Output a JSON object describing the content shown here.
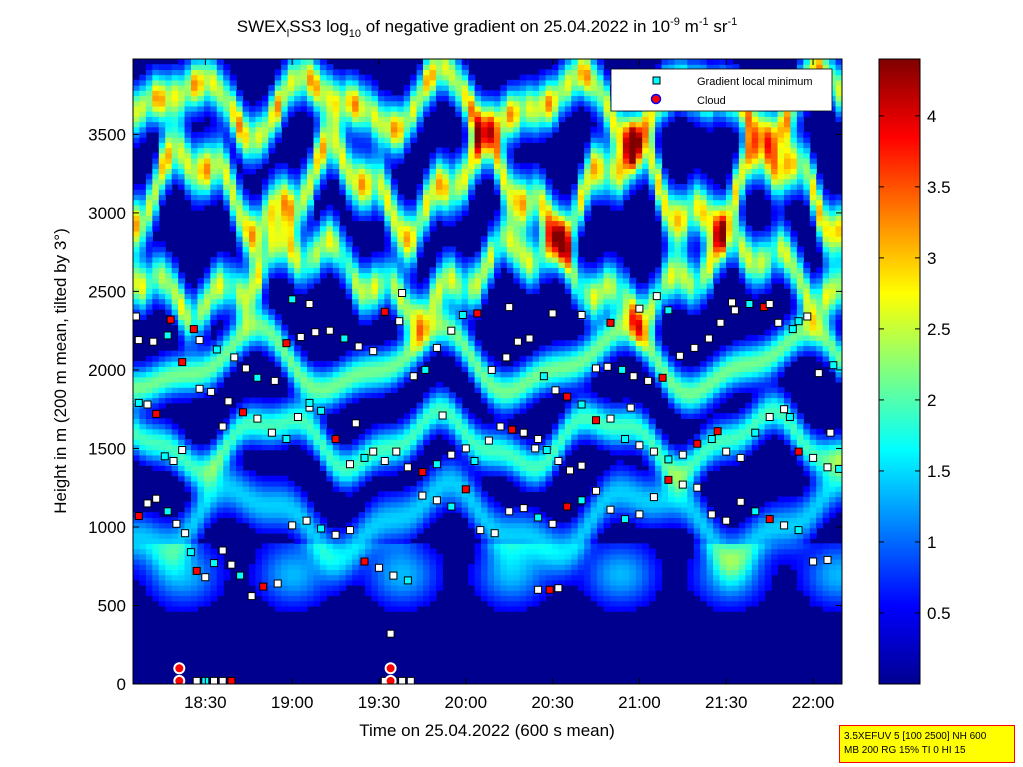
{
  "chart_data": {
    "type": "heatmap",
    "title": {
      "p1": "SWEX",
      "sub1": "l",
      "p2": "SS3 log",
      "sub2": "10",
      "p3": " of negative gradient on 25.04.2022 in 10",
      "sup1": "-9",
      "p4": " m",
      "sup2": "-1",
      "p5": " sr",
      "sup3": "-1"
    },
    "xlabel": "Time on 25.04.2022 (600 s mean)",
    "ylabel": "Height in m (200 m mean, tilted by 3°)",
    "x_ticks": [
      "18:30",
      "19:00",
      "19:30",
      "20:00",
      "20:30",
      "21:00",
      "21:30",
      "22:00"
    ],
    "x_range_minutes": [
      1085,
      1330
    ],
    "x_tick_minutes": [
      1110,
      1140,
      1170,
      1200,
      1230,
      1260,
      1290,
      1320
    ],
    "y_ticks": [
      0,
      500,
      1000,
      1500,
      2000,
      2500,
      3000,
      3500
    ],
    "ylim": [
      0,
      3980
    ],
    "colorbar": {
      "ticks": [
        "0.5",
        "1",
        "1.5",
        "2",
        "2.5",
        "3",
        "3.5",
        "4"
      ],
      "tick_values": [
        0.5,
        1,
        1.5,
        2,
        2.5,
        3,
        3.5,
        4
      ],
      "range": [
        0,
        4.4
      ],
      "colormap": "jet",
      "colors": [
        "#00008f",
        "#0000ff",
        "#0080ff",
        "#00ffff",
        "#80ff80",
        "#ffff00",
        "#ff8000",
        "#ff0000",
        "#800000"
      ]
    },
    "legend": {
      "position": "top-right",
      "entries": [
        {
          "label": "Gradient local minimum",
          "marker": "square",
          "color": "#00ffff"
        },
        {
          "label": "Cloud",
          "marker": "circle",
          "color": "#ff0000"
        }
      ]
    },
    "series": [
      {
        "name": "Gradient local minimum",
        "marker": "square",
        "points": [
          [
            1087,
            1070
          ],
          [
            1090,
            1150
          ],
          [
            1093,
            1180
          ],
          [
            1097,
            1100
          ],
          [
            1100,
            1020
          ],
          [
            1103,
            960
          ],
          [
            1105,
            840
          ],
          [
            1107,
            720
          ],
          [
            1110,
            680
          ],
          [
            1113,
            770
          ],
          [
            1116,
            850
          ],
          [
            1119,
            760
          ],
          [
            1122,
            690
          ],
          [
            1126,
            560
          ],
          [
            1130,
            620
          ],
          [
            1135,
            640
          ],
          [
            1140,
            1010
          ],
          [
            1145,
            1040
          ],
          [
            1150,
            990
          ],
          [
            1155,
            950
          ],
          [
            1160,
            980
          ],
          [
            1165,
            780
          ],
          [
            1170,
            740
          ],
          [
            1175,
            690
          ],
          [
            1180,
            660
          ],
          [
            1185,
            1200
          ],
          [
            1190,
            1170
          ],
          [
            1195,
            1130
          ],
          [
            1200,
            1240
          ],
          [
            1205,
            980
          ],
          [
            1210,
            960
          ],
          [
            1215,
            1100
          ],
          [
            1220,
            1120
          ],
          [
            1225,
            1060
          ],
          [
            1230,
            1020
          ],
          [
            1235,
            1130
          ],
          [
            1240,
            1170
          ],
          [
            1245,
            1230
          ],
          [
            1250,
            1110
          ],
          [
            1255,
            1050
          ],
          [
            1260,
            1080
          ],
          [
            1265,
            1190
          ],
          [
            1270,
            1300
          ],
          [
            1275,
            1270
          ],
          [
            1280,
            1250
          ],
          [
            1285,
            1080
          ],
          [
            1290,
            1040
          ],
          [
            1295,
            1160
          ],
          [
            1300,
            1100
          ],
          [
            1305,
            1050
          ],
          [
            1310,
            1010
          ],
          [
            1315,
            980
          ],
          [
            1320,
            780
          ],
          [
            1325,
            790
          ],
          [
            1087,
            1790
          ],
          [
            1090,
            1780
          ],
          [
            1093,
            1720
          ],
          [
            1096,
            1450
          ],
          [
            1099,
            1420
          ],
          [
            1102,
            1490
          ],
          [
            1108,
            1880
          ],
          [
            1112,
            1860
          ],
          [
            1118,
            1800
          ],
          [
            1123,
            1730
          ],
          [
            1128,
            1690
          ],
          [
            1133,
            1600
          ],
          [
            1138,
            1560
          ],
          [
            1142,
            1700
          ],
          [
            1146,
            1760
          ],
          [
            1150,
            1740
          ],
          [
            1155,
            1560
          ],
          [
            1160,
            1400
          ],
          [
            1165,
            1440
          ],
          [
            1168,
            1480
          ],
          [
            1172,
            1420
          ],
          [
            1176,
            1480
          ],
          [
            1180,
            1380
          ],
          [
            1185,
            1350
          ],
          [
            1190,
            1400
          ],
          [
            1195,
            1460
          ],
          [
            1200,
            1500
          ],
          [
            1203,
            1420
          ],
          [
            1208,
            1550
          ],
          [
            1212,
            1640
          ],
          [
            1216,
            1620
          ],
          [
            1220,
            1600
          ],
          [
            1225,
            1560
          ],
          [
            1228,
            1490
          ],
          [
            1232,
            1420
          ],
          [
            1236,
            1360
          ],
          [
            1240,
            1390
          ],
          [
            1245,
            1680
          ],
          [
            1250,
            1690
          ],
          [
            1255,
            1560
          ],
          [
            1260,
            1520
          ],
          [
            1265,
            1480
          ],
          [
            1270,
            1430
          ],
          [
            1275,
            1460
          ],
          [
            1280,
            1530
          ],
          [
            1285,
            1560
          ],
          [
            1290,
            1480
          ],
          [
            1295,
            1440
          ],
          [
            1300,
            1600
          ],
          [
            1305,
            1700
          ],
          [
            1310,
            1750
          ],
          [
            1315,
            1480
          ],
          [
            1320,
            1440
          ],
          [
            1325,
            1380
          ],
          [
            1329,
            1370
          ],
          [
            1087,
            2190
          ],
          [
            1092,
            2180
          ],
          [
            1097,
            2220
          ],
          [
            1102,
            2050
          ],
          [
            1108,
            2190
          ],
          [
            1114,
            2130
          ],
          [
            1120,
            2080
          ],
          [
            1124,
            2010
          ],
          [
            1128,
            1950
          ],
          [
            1134,
            1930
          ],
          [
            1138,
            2170
          ],
          [
            1143,
            2210
          ],
          [
            1148,
            2240
          ],
          [
            1153,
            2250
          ],
          [
            1158,
            2200
          ],
          [
            1163,
            2150
          ],
          [
            1168,
            2120
          ],
          [
            1172,
            2370
          ],
          [
            1177,
            2310
          ],
          [
            1182,
            1960
          ],
          [
            1186,
            2000
          ],
          [
            1190,
            2140
          ],
          [
            1195,
            2250
          ],
          [
            1199,
            2350
          ],
          [
            1204,
            2360
          ],
          [
            1209,
            2000
          ],
          [
            1214,
            2080
          ],
          [
            1218,
            2180
          ],
          [
            1222,
            2200
          ],
          [
            1227,
            1960
          ],
          [
            1231,
            1870
          ],
          [
            1235,
            1830
          ],
          [
            1240,
            1780
          ],
          [
            1245,
            2010
          ],
          [
            1249,
            2020
          ],
          [
            1254,
            2000
          ],
          [
            1258,
            1960
          ],
          [
            1263,
            1930
          ],
          [
            1268,
            1950
          ],
          [
            1274,
            2090
          ],
          [
            1279,
            2140
          ],
          [
            1284,
            2200
          ],
          [
            1288,
            2300
          ],
          [
            1293,
            2380
          ],
          [
            1298,
            2420
          ],
          [
            1303,
            2400
          ],
          [
            1308,
            2300
          ],
          [
            1313,
            2260
          ],
          [
            1318,
            2340
          ],
          [
            1322,
            1980
          ],
          [
            1327,
            2030
          ],
          [
            1086,
            2340
          ],
          [
            1098,
            2320
          ],
          [
            1140,
            2450
          ],
          [
            1146,
            2420
          ],
          [
            1178,
            2490
          ],
          [
            1215,
            2400
          ],
          [
            1230,
            2360
          ],
          [
            1240,
            2350
          ],
          [
            1250,
            2300
          ],
          [
            1260,
            2390
          ],
          [
            1266,
            2470
          ],
          [
            1270,
            2380
          ],
          [
            1292,
            2430
          ],
          [
            1305,
            2420
          ],
          [
            1315,
            2310
          ],
          [
            1106,
            2260
          ],
          [
            1116,
            1640
          ],
          [
            1146,
            1790
          ],
          [
            1162,
            1660
          ],
          [
            1192,
            1710
          ],
          [
            1224,
            1500
          ],
          [
            1257,
            1760
          ],
          [
            1287,
            1610
          ],
          [
            1312,
            1700
          ],
          [
            1326,
            1600
          ],
          [
            1107,
            20
          ],
          [
            1110,
            20
          ],
          [
            1113,
            20
          ],
          [
            1116,
            20
          ],
          [
            1119,
            20
          ],
          [
            1172,
            20
          ],
          [
            1174,
            320
          ],
          [
            1175,
            20
          ],
          [
            1178,
            20
          ],
          [
            1181,
            20
          ],
          [
            1225,
            600
          ],
          [
            1229,
            600
          ],
          [
            1232,
            610
          ]
        ]
      },
      {
        "name": "Cloud",
        "marker": "circle",
        "points": [
          [
            1101,
            20
          ],
          [
            1101,
            100
          ],
          [
            1174,
            20
          ],
          [
            1174,
            100
          ]
        ]
      }
    ]
  },
  "info_box": {
    "line1": "3.5XEFUV 5 [100 2500] NH 600",
    "line2": "MB 200 RG 15% TI 0 HI 15"
  }
}
